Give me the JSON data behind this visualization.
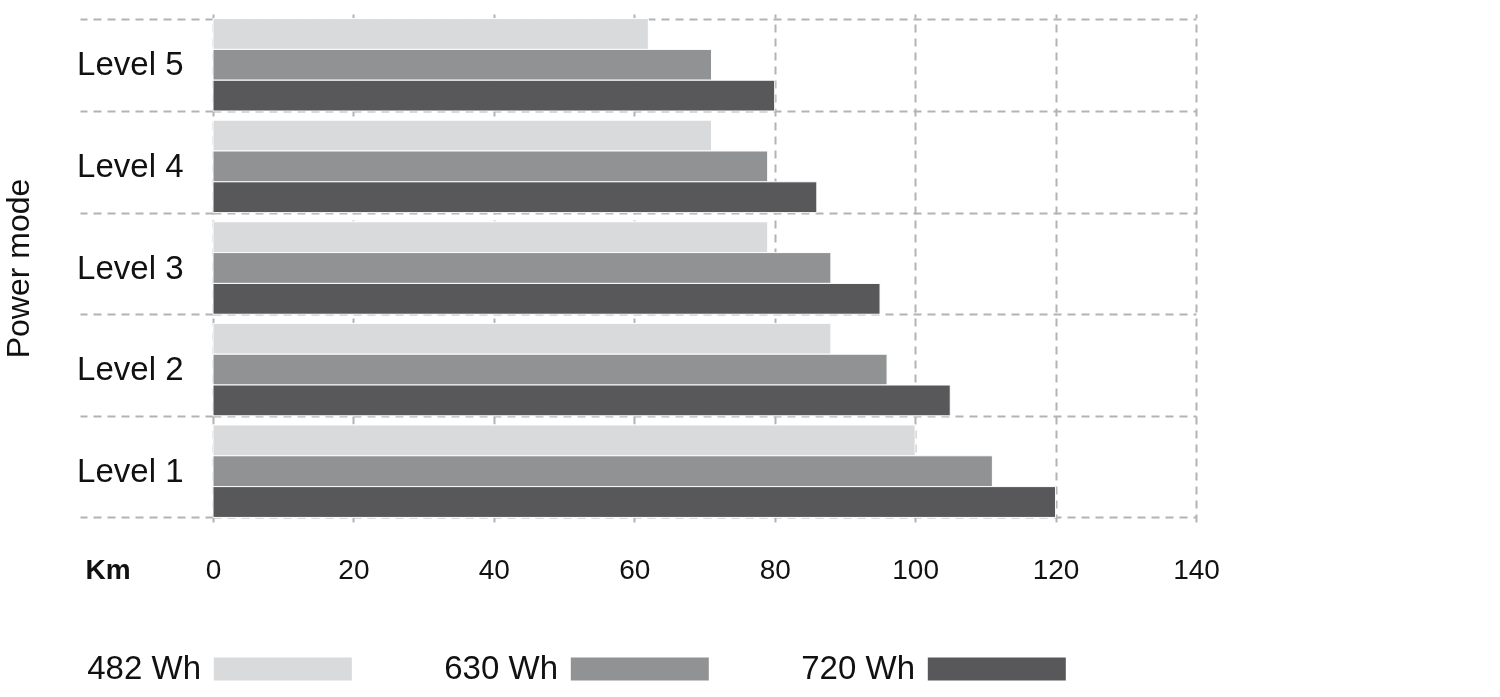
{
  "chart_data": {
    "type": "bar",
    "orientation": "horizontal",
    "categories": [
      "Level 5",
      "Level 4",
      "Level 3",
      "Level 2",
      "Level 1"
    ],
    "series": [
      {
        "name": "482 Wh",
        "color": "#d9dadc",
        "values": [
          62,
          71,
          79,
          88,
          100
        ]
      },
      {
        "name": "630 Wh",
        "color": "#919293",
        "values": [
          71,
          79,
          88,
          96,
          111
        ]
      },
      {
        "name": "720 Wh",
        "color": "#58585a",
        "values": [
          80,
          86,
          95,
          105,
          120
        ]
      }
    ],
    "xlabel": "Km",
    "ylabel": "Power mode",
    "xlim": [
      0,
      140
    ],
    "xticks": [
      0,
      20,
      40,
      60,
      80,
      100,
      120,
      140
    ],
    "grid": true,
    "legend": "bottom"
  }
}
